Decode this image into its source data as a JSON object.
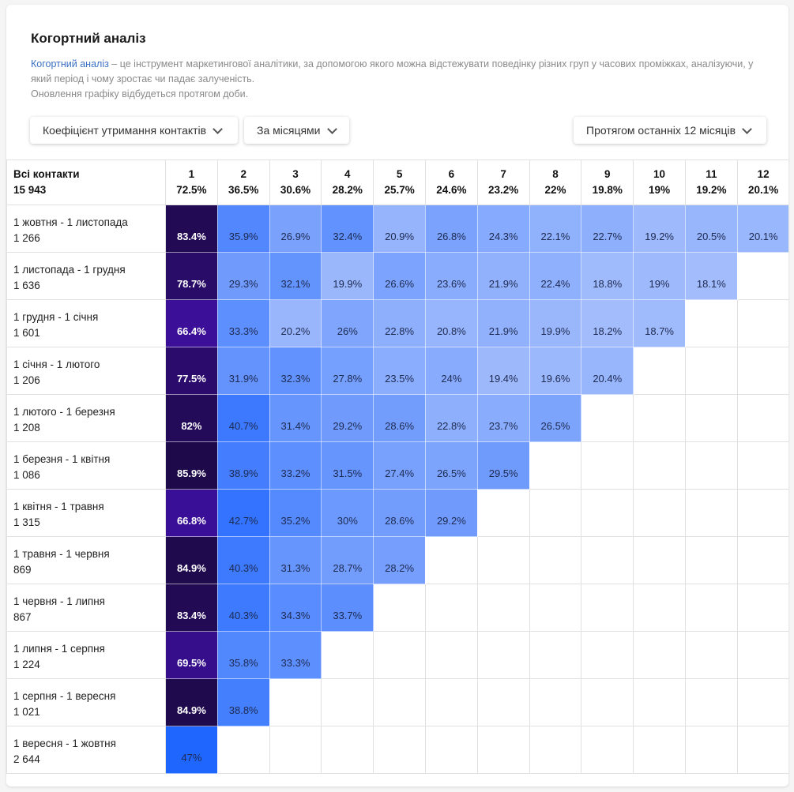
{
  "header": {
    "title": "Когортний аналіз",
    "description_link": "Когортний аналіз",
    "description_text": " – це інструмент маркетингової аналітики, за допомогою якого можна відстежувати поведінку різних груп у часових проміжках, аналізуючи, у який період і чому зростає чи падає залученість.",
    "description_note": "Оновлення графіку відбудеться протягом доби."
  },
  "filters": {
    "metric": "Коефіцієнт утримання контактів",
    "period": "За місяцями",
    "range": "Протягом останніх 12 місяців"
  },
  "colors": {
    "low": "#a3bdfc",
    "mid": "#1f66ff",
    "high_start": "#3d0f9e",
    "high_end": "#1e0a4a"
  },
  "table": {
    "total_label": "Всі контакти",
    "total_value": "15 943",
    "columns": [
      {
        "n": "1",
        "avg": "72.5%"
      },
      {
        "n": "2",
        "avg": "36.5%"
      },
      {
        "n": "3",
        "avg": "30.6%"
      },
      {
        "n": "4",
        "avg": "28.2%"
      },
      {
        "n": "5",
        "avg": "25.7%"
      },
      {
        "n": "6",
        "avg": "24.6%"
      },
      {
        "n": "7",
        "avg": "23.2%"
      },
      {
        "n": "8",
        "avg": "22%"
      },
      {
        "n": "9",
        "avg": "19.8%"
      },
      {
        "n": "10",
        "avg": "19%"
      },
      {
        "n": "11",
        "avg": "19.2%"
      },
      {
        "n": "12",
        "avg": "20.1%"
      }
    ],
    "rows": [
      {
        "period": "1 жовтня - 1 листопада",
        "count": "1 266",
        "values": [
          "83.4%",
          "35.9%",
          "26.9%",
          "32.4%",
          "20.9%",
          "26.8%",
          "24.3%",
          "22.1%",
          "22.7%",
          "19.2%",
          "20.5%",
          "20.1%"
        ]
      },
      {
        "period": "1 листопада - 1 грудня",
        "count": "1 636",
        "values": [
          "78.7%",
          "29.3%",
          "32.1%",
          "19.9%",
          "26.6%",
          "23.6%",
          "21.9%",
          "22.4%",
          "18.8%",
          "19%",
          "18.1%"
        ]
      },
      {
        "period": "1 грудня - 1 січня",
        "count": "1 601",
        "values": [
          "66.4%",
          "33.3%",
          "20.2%",
          "26%",
          "22.8%",
          "20.8%",
          "21.9%",
          "19.9%",
          "18.2%",
          "18.7%"
        ]
      },
      {
        "period": "1 січня - 1 лютого",
        "count": "1 206",
        "values": [
          "77.5%",
          "31.9%",
          "32.3%",
          "27.8%",
          "23.5%",
          "24%",
          "19.4%",
          "19.6%",
          "20.4%"
        ]
      },
      {
        "period": "1 лютого - 1 березня",
        "count": "1 208",
        "values": [
          "82%",
          "40.7%",
          "31.4%",
          "29.2%",
          "28.6%",
          "22.8%",
          "23.7%",
          "26.5%"
        ]
      },
      {
        "period": "1 березня - 1 квітня",
        "count": "1 086",
        "values": [
          "85.9%",
          "38.9%",
          "33.2%",
          "31.5%",
          "27.4%",
          "26.5%",
          "29.5%"
        ]
      },
      {
        "period": "1 квітня - 1 травня",
        "count": "1 315",
        "values": [
          "66.8%",
          "42.7%",
          "35.2%",
          "30%",
          "28.6%",
          "29.2%"
        ]
      },
      {
        "period": "1 травня - 1 червня",
        "count": "869",
        "values": [
          "84.9%",
          "40.3%",
          "31.3%",
          "28.7%",
          "28.2%"
        ]
      },
      {
        "period": "1 червня - 1 липня",
        "count": "867",
        "values": [
          "83.4%",
          "40.3%",
          "34.3%",
          "33.7%"
        ]
      },
      {
        "period": "1 липня - 1 серпня",
        "count": "1 224",
        "values": [
          "69.5%",
          "35.8%",
          "33.3%"
        ]
      },
      {
        "period": "1 серпня - 1 вересня",
        "count": "1 021",
        "values": [
          "84.9%",
          "38.8%"
        ]
      },
      {
        "period": "1 вересня - 1 жовтня",
        "count": "2 644",
        "values": [
          "47%"
        ]
      }
    ]
  }
}
